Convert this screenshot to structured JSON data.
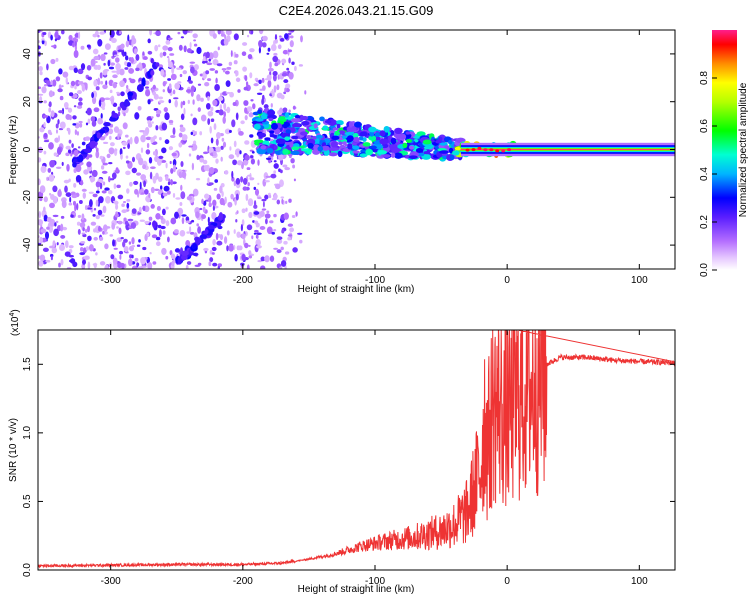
{
  "figure_title": "C2E4.2026.043.21.15.G09",
  "chart_data": [
    {
      "type": "heatmap",
      "title": "C2E4.2026.043.21.15.G09",
      "xlabel": "Height of straight line (km)",
      "ylabel": "Frequency (Hz)",
      "xlim": [
        -355,
        127
      ],
      "ylim": [
        -50,
        50
      ],
      "x_ticks": [
        -300,
        -200,
        -100,
        0,
        100
      ],
      "x_tick_labels": [
        "-300",
        "-200",
        "-100",
        "0",
        "100"
      ],
      "y_ticks": [
        -40,
        -20,
        0,
        20,
        40
      ],
      "y_tick_labels": [
        "-40",
        "-20",
        "0",
        "20",
        "40"
      ],
      "colorbar": {
        "label": "Normalized spectral amplitude",
        "range": [
          0,
          1
        ],
        "ticks": [
          0,
          0.2,
          0.4,
          0.6,
          0.8
        ],
        "tick_labels": [
          "0.0",
          "0.2",
          "0.4",
          "0.6",
          "0.8"
        ]
      },
      "features": [
        {
          "name": "diffuse noise region",
          "x_range": [
            -355,
            -160
          ],
          "freq_range": [
            -50,
            50
          ],
          "amplitude": 0.15
        },
        {
          "name": "diagonal track 1",
          "x": [
            -330,
            -265
          ],
          "freq": [
            -8,
            35
          ],
          "amplitude": 0.2
        },
        {
          "name": "diagonal track 2",
          "x": [
            -250,
            -215
          ],
          "freq": [
            -48,
            -28
          ],
          "amplitude": 0.2
        },
        {
          "name": "scattered cluster",
          "x_range": [
            -190,
            -35
          ],
          "freq_range": [
            -8,
            15
          ],
          "amplitude": 0.45
        },
        {
          "name": "steady tone",
          "x_range": [
            -35,
            127
          ],
          "freq": 0,
          "amplitude": 1.0
        }
      ]
    },
    {
      "type": "line",
      "xlabel": "Height of straight line (km)",
      "ylabel": "SNR (10 * v/v)",
      "y_multiplier": "(x10",
      "y_multiplier_exp": "4",
      "y_multiplier_close": ")",
      "xlim": [
        -355,
        127
      ],
      "ylim": [
        0,
        1.75
      ],
      "x_ticks": [
        -300,
        -200,
        -100,
        0,
        100
      ],
      "x_tick_labels": [
        "-300",
        "-200",
        "-100",
        "0",
        "100"
      ],
      "y_ticks": [
        0,
        0.5,
        1.0,
        1.5
      ],
      "y_tick_labels": [
        "0.0",
        "0.5",
        "1.0",
        "1.5"
      ],
      "series": [
        {
          "name": "SNR",
          "color": "#ee3333",
          "x": [
            -355,
            -300,
            -250,
            -200,
            -170,
            -150,
            -130,
            -110,
            -90,
            -70,
            -50,
            -40,
            -30,
            -20,
            -17,
            -15,
            -10,
            0,
            10,
            20,
            30,
            40,
            60,
            80,
            100,
            127
          ],
          "y": [
            0.03,
            0.035,
            0.04,
            0.04,
            0.05,
            0.08,
            0.12,
            0.18,
            0.22,
            0.25,
            0.3,
            0.35,
            0.45,
            0.8,
            1.2,
            0.95,
            1.3,
            1.2,
            1.35,
            1.45,
            1.5,
            1.55,
            1.55,
            1.53,
            1.52,
            1.51
          ]
        }
      ]
    }
  ]
}
